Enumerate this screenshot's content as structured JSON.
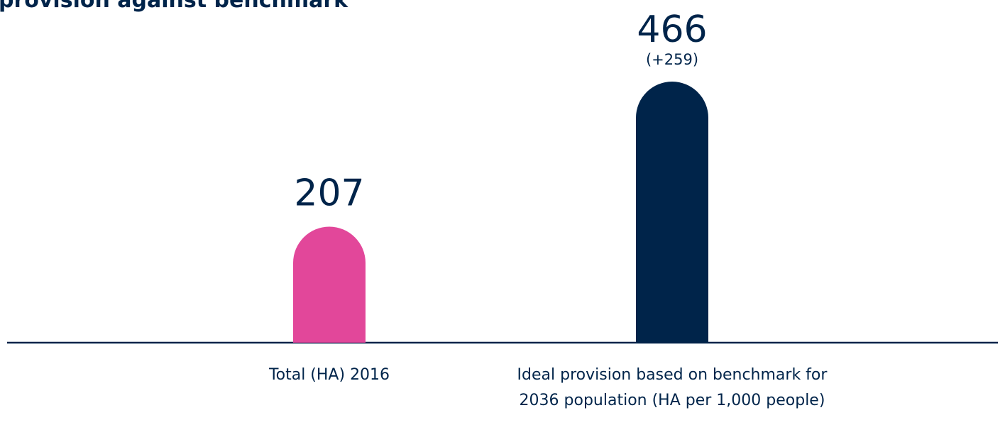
{
  "chart_data": {
    "type": "bar",
    "title": "provision against benchmark",
    "categories": [
      "Total (HA) 2016",
      "Ideal provision based on benchmark for 2036 population (HA per 1,000 people)"
    ],
    "values": [
      207,
      466
    ],
    "colors": [
      "#e2479a",
      "#00244a"
    ],
    "annotation": "(+259)"
  }
}
